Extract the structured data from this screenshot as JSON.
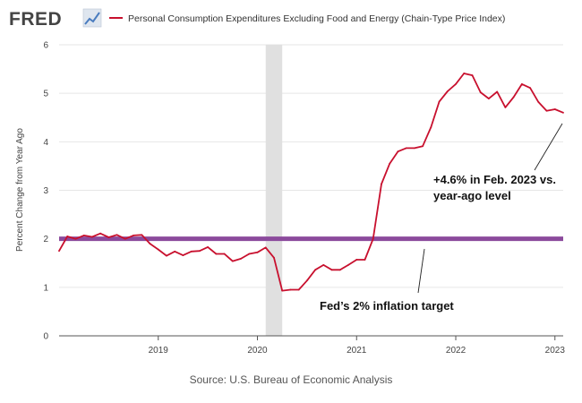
{
  "header": {
    "logo_text": "FRED",
    "legend_label": "Personal Consumption Expenditures Excluding Food and Energy (Chain-Type Price Index)"
  },
  "source": "Source: U.S. Bureau of Economic Analysis",
  "colors": {
    "series": "#c8102e",
    "target_line": "#8b4a9c",
    "recession_shade": "#e0e0e0",
    "grid": "#e6e6e6"
  },
  "chart_data": {
    "type": "line",
    "ylabel": "Percent Change from Year Ago",
    "ylim": [
      0,
      6
    ],
    "yticks": [
      0,
      1,
      2,
      3,
      4,
      5,
      6
    ],
    "xlim": [
      "2018-01",
      "2023-02"
    ],
    "xticks": [
      {
        "date": "2019-01",
        "label": "2019"
      },
      {
        "date": "2020-01",
        "label": "2020"
      },
      {
        "date": "2021-01",
        "label": "2021"
      },
      {
        "date": "2022-01",
        "label": "2022"
      },
      {
        "date": "2023-01",
        "label": "2023"
      }
    ],
    "grid": "horizontal",
    "recession": {
      "start": "2020-02",
      "end": "2020-04"
    },
    "series": [
      {
        "name": "Personal Consumption Expenditures Excluding Food and Energy (Chain-Type Price Index)",
        "x": [
          "2018-01",
          "2018-02",
          "2018-03",
          "2018-04",
          "2018-05",
          "2018-06",
          "2018-07",
          "2018-08",
          "2018-09",
          "2018-10",
          "2018-11",
          "2018-12",
          "2019-01",
          "2019-02",
          "2019-03",
          "2019-04",
          "2019-05",
          "2019-06",
          "2019-07",
          "2019-08",
          "2019-09",
          "2019-10",
          "2019-11",
          "2019-12",
          "2020-01",
          "2020-02",
          "2020-03",
          "2020-04",
          "2020-05",
          "2020-06",
          "2020-07",
          "2020-08",
          "2020-09",
          "2020-10",
          "2020-11",
          "2020-12",
          "2021-01",
          "2021-02",
          "2021-03",
          "2021-04",
          "2021-05",
          "2021-06",
          "2021-07",
          "2021-08",
          "2021-09",
          "2021-10",
          "2021-11",
          "2021-12",
          "2022-01",
          "2022-02",
          "2022-03",
          "2022-04",
          "2022-05",
          "2022-06",
          "2022-07",
          "2022-08",
          "2022-09",
          "2022-10",
          "2022-11",
          "2022-12",
          "2023-01",
          "2023-02"
        ],
        "values": [
          1.75,
          2.05,
          2.0,
          2.07,
          2.04,
          2.11,
          2.03,
          2.08,
          2.0,
          2.07,
          2.08,
          1.9,
          1.78,
          1.65,
          1.74,
          1.66,
          1.74,
          1.75,
          1.83,
          1.69,
          1.69,
          1.54,
          1.59,
          1.69,
          1.72,
          1.82,
          1.61,
          0.93,
          0.95,
          0.95,
          1.14,
          1.36,
          1.46,
          1.36,
          1.36,
          1.46,
          1.57,
          1.57,
          2.0,
          3.13,
          3.55,
          3.8,
          3.87,
          3.87,
          3.91,
          4.3,
          4.83,
          5.04,
          5.19,
          5.41,
          5.37,
          5.02,
          4.89,
          5.03,
          4.71,
          4.92,
          5.19,
          5.11,
          4.82,
          4.64,
          4.67,
          4.6
        ]
      }
    ],
    "reference_line": {
      "y": 2.0
    },
    "annotations": [
      {
        "text_lines": [
          "+4.6% in Feb. 2023 vs.",
          "year-ago level"
        ]
      },
      {
        "text_lines": [
          "Fed’s 2% inflation target"
        ]
      }
    ]
  }
}
